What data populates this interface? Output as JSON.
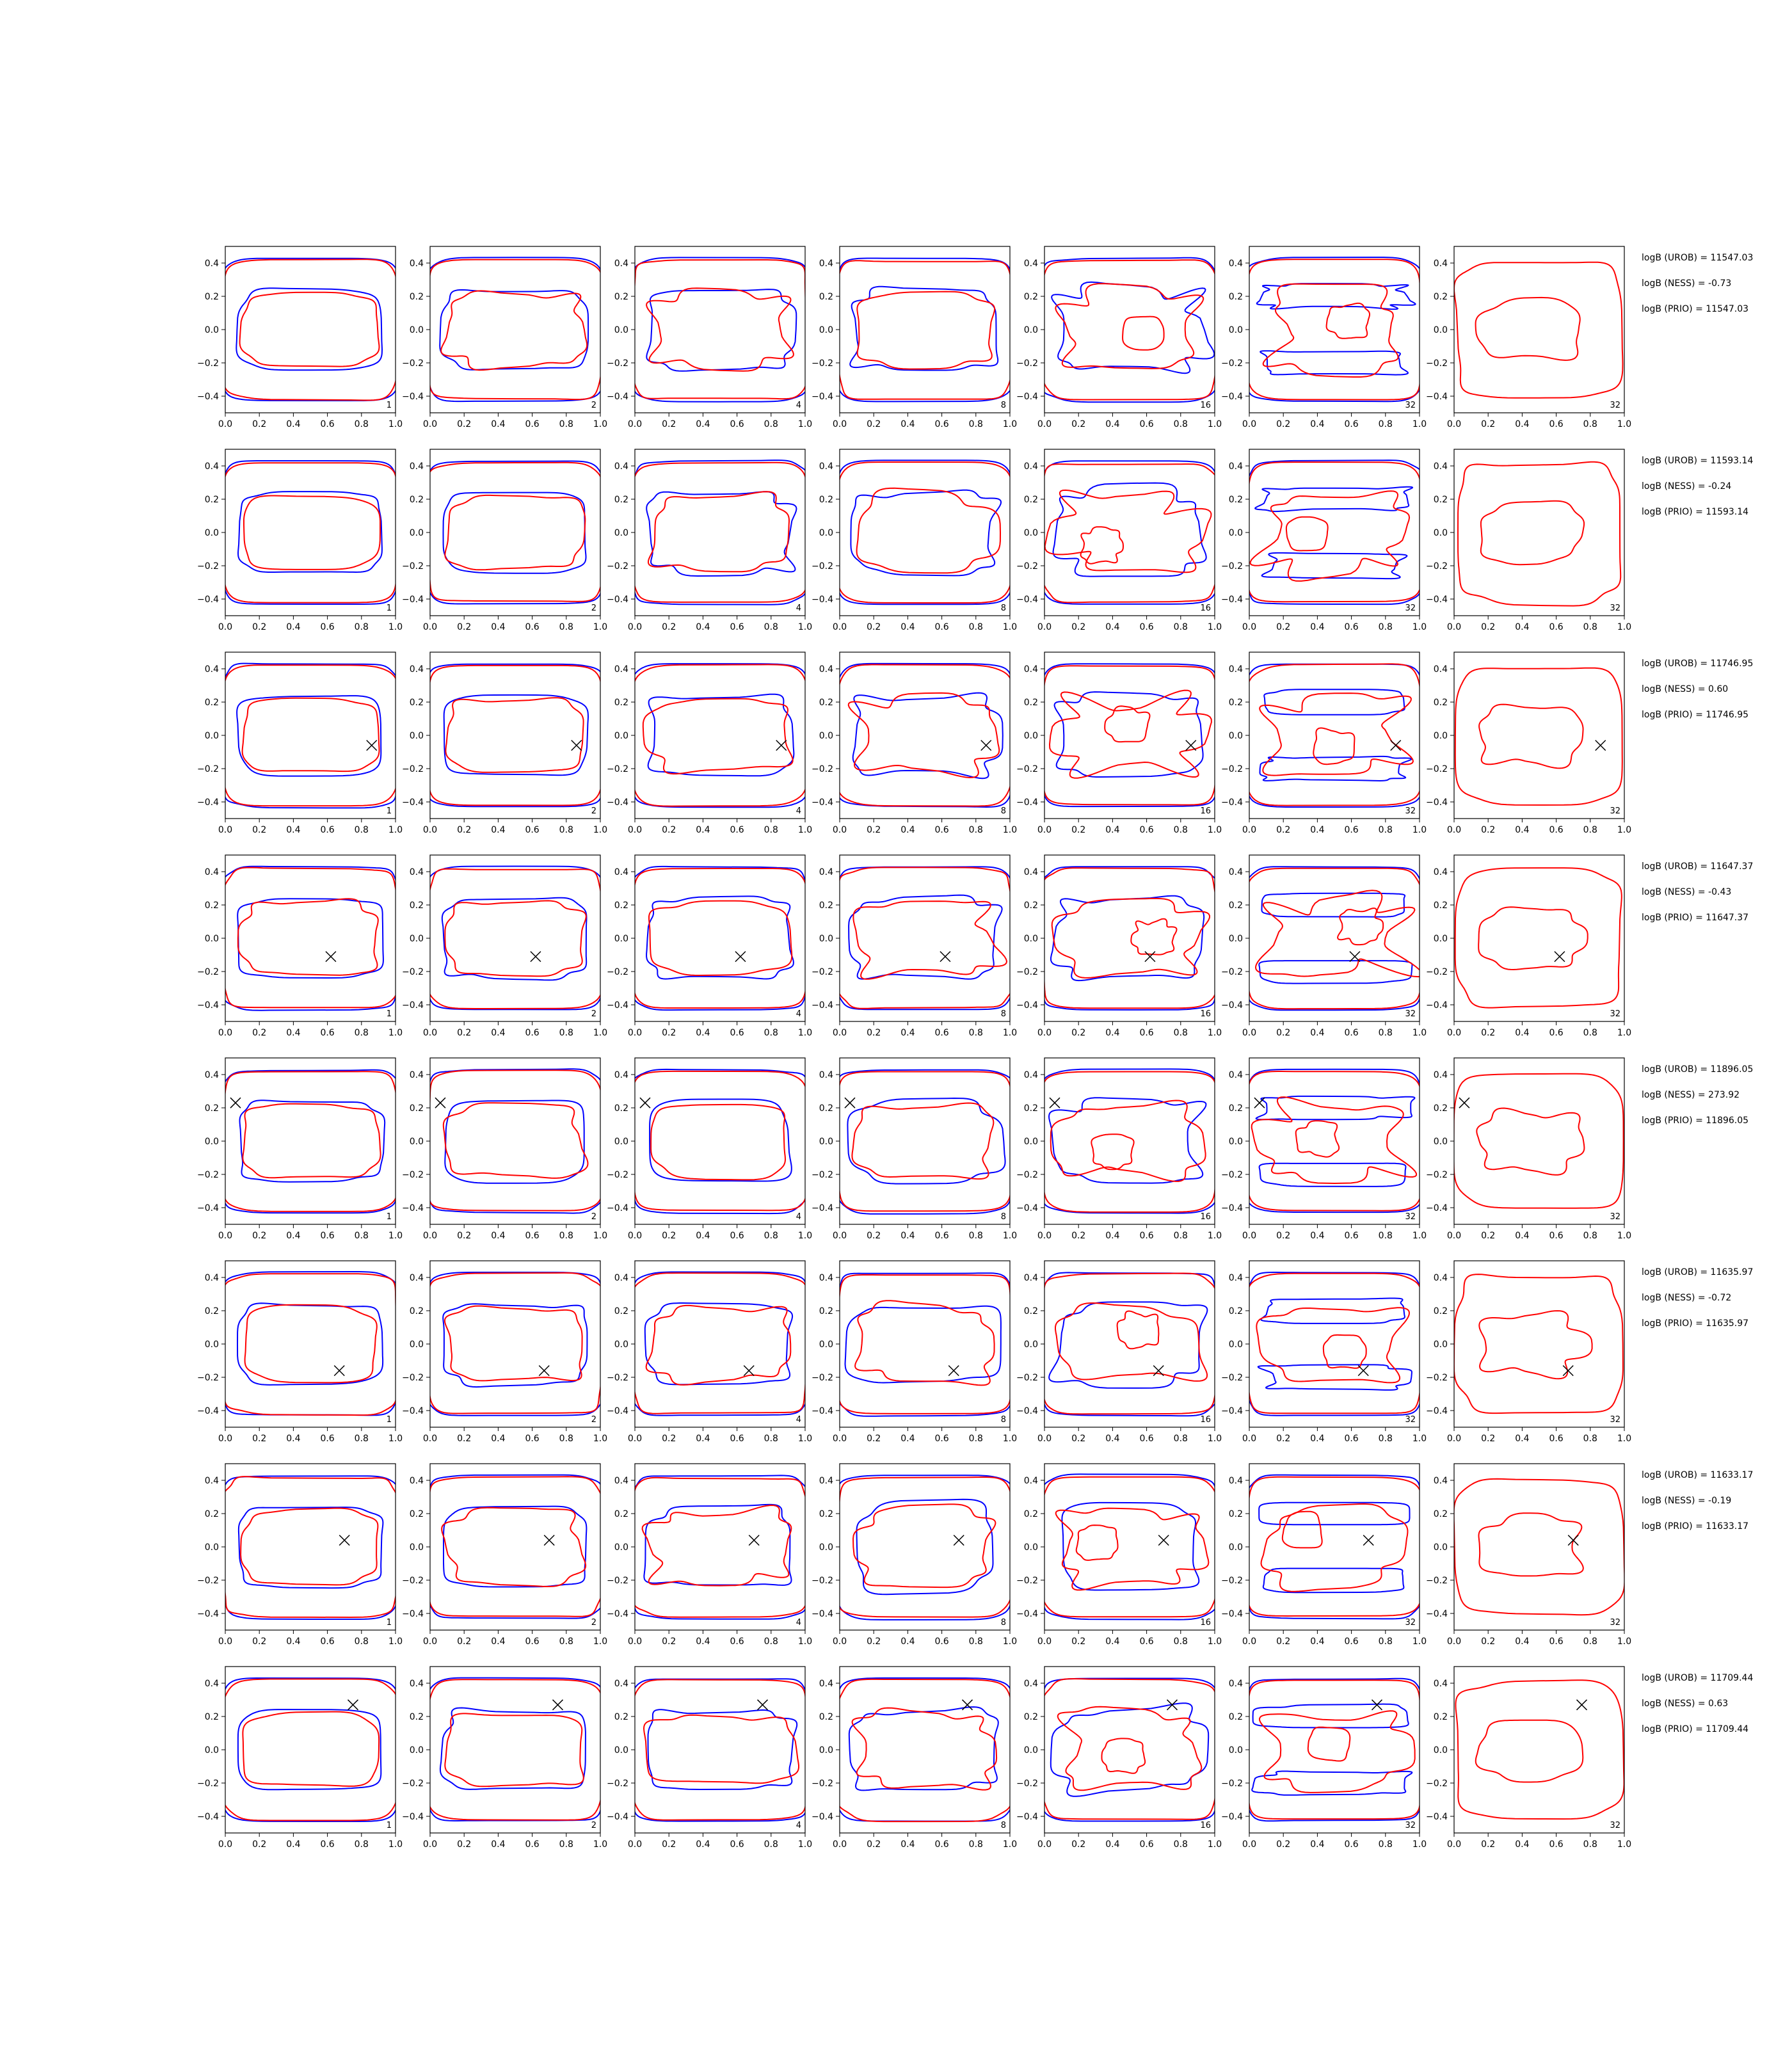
{
  "figure": {
    "columns": [
      1,
      2,
      4,
      8,
      16,
      32,
      32
    ],
    "colors": {
      "blue": "#0000ff",
      "red": "#ff0000",
      "axis": "#000000",
      "marker": "#000000"
    }
  },
  "chart_data": {
    "type": "line",
    "description_of_layout": "8 rows x 7 columns of small contour panels",
    "xlim": [
      0.0,
      1.0
    ],
    "ylim": [
      -0.5,
      0.5
    ],
    "xticks": [
      "0.0",
      "0.2",
      "0.4",
      "0.6",
      "0.8",
      "1.0"
    ],
    "yticks": [
      "0.4",
      "0.2",
      "0.0",
      "−0.2",
      "−0.4"
    ],
    "series": [
      {
        "name": "blue contour"
      },
      {
        "name": "red contour"
      }
    ],
    "rows": [
      {
        "marker": null,
        "logB": [
          "logB (UROB) = 11547.03",
          "logB (NESS) = -0.73",
          "logB (PRIO) = 11547.03"
        ]
      },
      {
        "marker": null,
        "logB": [
          "logB (UROB) = 11593.14",
          "logB (NESS) = -0.24",
          "logB (PRIO) = 11593.14"
        ]
      },
      {
        "marker": [
          0.86,
          -0.06
        ],
        "logB": [
          "logB (UROB) = 11746.95",
          "logB (NESS) = 0.60",
          "logB (PRIO) = 11746.95"
        ]
      },
      {
        "marker": [
          0.62,
          -0.11
        ],
        "logB": [
          "logB (UROB) = 11647.37",
          "logB (NESS) = -0.43",
          "logB (PRIO) = 11647.37"
        ]
      },
      {
        "marker": [
          0.06,
          0.23
        ],
        "logB": [
          "logB (UROB) = 11896.05",
          "logB (NESS) = 273.92",
          "logB (PRIO) = 11896.05"
        ]
      },
      {
        "marker": [
          0.67,
          -0.16
        ],
        "logB": [
          "logB (UROB) = 11635.97",
          "logB (NESS) = -0.72",
          "logB (PRIO) = 11635.97"
        ]
      },
      {
        "marker": [
          0.7,
          0.04
        ],
        "logB": [
          "logB (UROB) = 11633.17",
          "logB (NESS) = -0.19",
          "logB (PRIO) = 11633.17"
        ]
      },
      {
        "marker": [
          0.75,
          0.27
        ],
        "logB": [
          "logB (UROB) = 11709.44",
          "logB (NESS) = 0.63",
          "logB (PRIO) = 11709.44"
        ]
      }
    ]
  }
}
